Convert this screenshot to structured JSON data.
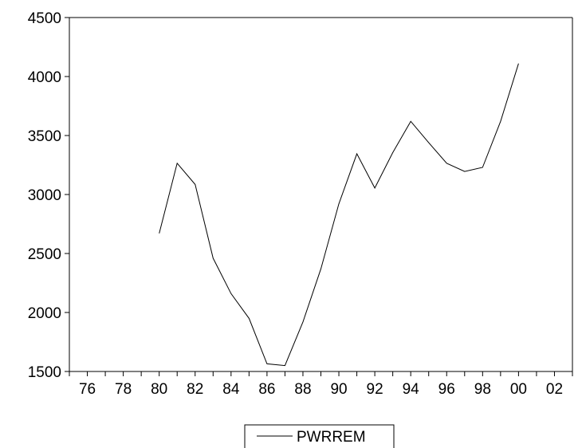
{
  "chart_data": {
    "type": "line",
    "title": "",
    "xlabel": "",
    "ylabel": "",
    "x_ticks": [
      "76",
      "78",
      "80",
      "82",
      "84",
      "86",
      "88",
      "90",
      "92",
      "94",
      "96",
      "98",
      "00",
      "02"
    ],
    "y_ticks": [
      1500,
      2000,
      2500,
      3000,
      3500,
      4000,
      4500
    ],
    "xlim": [
      1975,
      2003
    ],
    "ylim": [
      1500,
      4500
    ],
    "grid": false,
    "legend_position": "bottom-center",
    "series": [
      {
        "name": "PWRREM",
        "color": "#000000",
        "x": [
          1980,
          1981,
          1982,
          1983,
          1984,
          1985,
          1986,
          1987,
          1988,
          1989,
          1990,
          1991,
          1992,
          1993,
          1994,
          1995,
          1996,
          1997,
          1998,
          1999,
          2000
        ],
        "values": [
          2670,
          3265,
          3085,
          2460,
          2160,
          1950,
          1565,
          1550,
          1920,
          2370,
          2920,
          3345,
          3055,
          3355,
          3620,
          3440,
          3265,
          3195,
          3230,
          3620,
          4110
        ]
      }
    ]
  }
}
